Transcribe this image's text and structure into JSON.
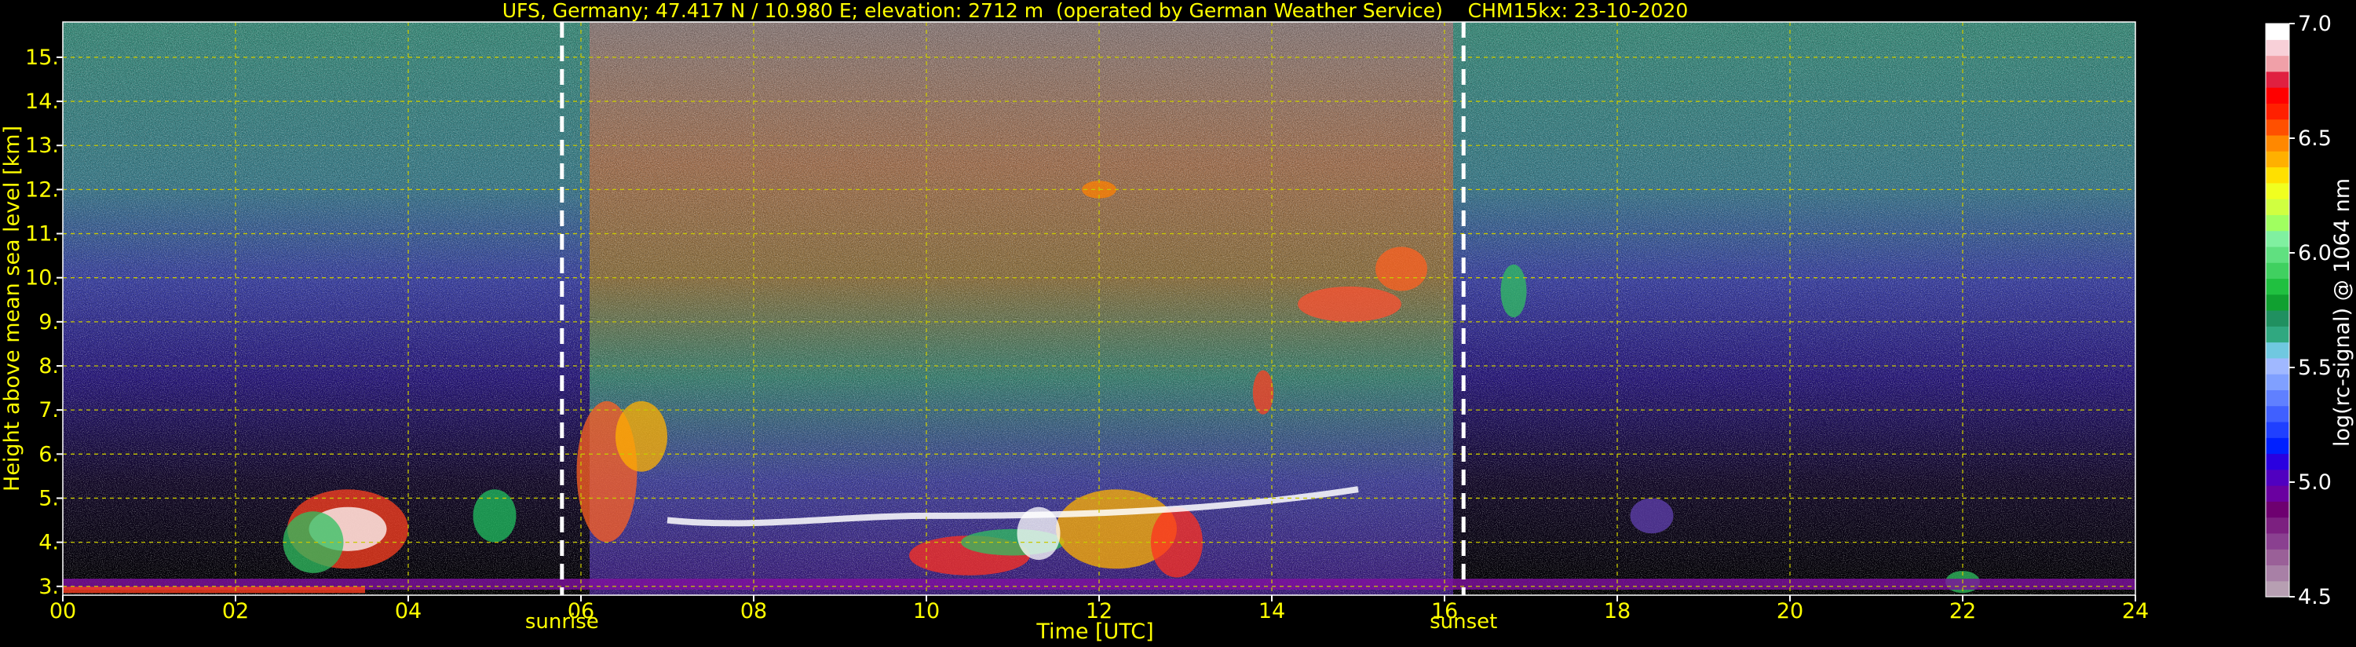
{
  "colors": {
    "background": "#000000",
    "text_yellow": "#ffff00",
    "grid": "#c8c800",
    "colorbar_label": "#ffffff"
  },
  "chart_data": {
    "type": "heatmap",
    "title": "UFS, Germany; 47.417 N / 10.980 E; elevation: 2712 m  (operated by German Weather Service)    CHM15kx: 23-10-2020",
    "xlabel": "Time [UTC]",
    "ylabel": "Height above mean sea level [km]",
    "xlim": [
      0,
      24
    ],
    "ylim": [
      2.8,
      15.8
    ],
    "x_ticks": [
      0,
      2,
      4,
      6,
      8,
      10,
      12,
      14,
      16,
      18,
      20,
      22,
      24
    ],
    "x_tick_labels": [
      "00",
      "02",
      "04",
      "06",
      "08",
      "10",
      "12",
      "14",
      "16",
      "18",
      "20",
      "22",
      "24"
    ],
    "y_ticks": [
      3,
      4,
      5,
      6,
      7,
      8,
      9,
      10,
      11,
      12,
      13,
      14,
      15
    ],
    "y_tick_labels": [
      "3.",
      "4.",
      "5.",
      "6.",
      "7.",
      "8.",
      "9.",
      "10.",
      "11.",
      "12.",
      "13.",
      "14.",
      "15."
    ],
    "grid": true,
    "markers": [
      {
        "label": "sunrise",
        "x": 5.78
      },
      {
        "label": "sunset",
        "x": 16.22
      }
    ],
    "colorbar": {
      "label": "log(rc-signal) @ 1064 nm",
      "range": [
        4.5,
        7.0
      ],
      "ticks": [
        4.5,
        5.0,
        5.5,
        6.0,
        6.5,
        7.0
      ],
      "tick_labels": [
        "4.5",
        "5.0",
        "5.5",
        "6.0",
        "6.5",
        "7.0"
      ],
      "colors": [
        "#b79fb2",
        "#a880a6",
        "#9a6098",
        "#8a4090",
        "#7c2080",
        "#6e0070",
        "#6a00a0",
        "#5000c0",
        "#2a00e0",
        "#0020ff",
        "#2040ff",
        "#4060ff",
        "#6080ff",
        "#80a0ff",
        "#a0b8ff",
        "#70c8e0",
        "#30a880",
        "#209060",
        "#10a030",
        "#20c040",
        "#40d060",
        "#60e080",
        "#80f0a0",
        "#a0ff60",
        "#d0ff40",
        "#f0ff20",
        "#ffe000",
        "#ffb000",
        "#ff8800",
        "#ff5000",
        "#ff2000",
        "#ff0000",
        "#e02040",
        "#f0a0a8",
        "#f8d0d8",
        "#ffffff"
      ]
    }
  }
}
